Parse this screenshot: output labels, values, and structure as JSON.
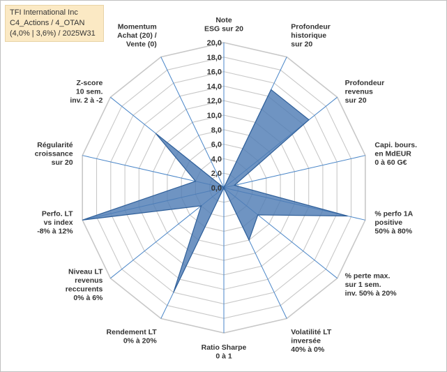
{
  "title_box": {
    "line1": "TFI International Inc",
    "line2": "C4_Actions / 4_OTAN",
    "line3": "(4,0% | 3,6%) / 2025W31"
  },
  "colors": {
    "fill": "#4f7cb5",
    "stroke": "#2f5f99",
    "grid": "#c8c8c8",
    "spoke": "#4a86c8",
    "title_bg": "#fbe9c4"
  },
  "chart_data": {
    "type": "radar",
    "rmax": 20,
    "ticks": [
      "0,0",
      "2,0",
      "4,0",
      "6,0",
      "8,0",
      "10,0",
      "12,0",
      "14,0",
      "16,0",
      "18,0",
      "20,0"
    ],
    "axes": [
      {
        "label": [
          "Note",
          "ESG sur 20"
        ],
        "value": 0
      },
      {
        "label": [
          "Profondeur",
          "historique",
          "sur 20"
        ],
        "value": 15
      },
      {
        "label": [
          "Profondeur",
          "revenus",
          "sur 20"
        ],
        "value": 15
      },
      {
        "label": [
          "Capi. bours.",
          "en MdEUR",
          "0 à 60 G€"
        ],
        "value": 1.5
      },
      {
        "label": [
          "% perfo 1A",
          "positive",
          "50% à 80%"
        ],
        "value": 17.5
      },
      {
        "label": [
          "% perte max.",
          "sur 1 sem.",
          "inv. 50% à 20%"
        ],
        "value": 6
      },
      {
        "label": [
          "Volatilité LT",
          "inversée",
          "40% à 0%"
        ],
        "value": 8
      },
      {
        "label": [
          "Ratio Sharpe",
          "0 à 1"
        ],
        "value": 0
      },
      {
        "label": [
          "Rendement LT",
          "0% à 20%"
        ],
        "value": 16
      },
      {
        "label": [
          "Niveau LT",
          "revenus",
          "reccurents",
          "0% à 6%"
        ],
        "value": 4
      },
      {
        "label": [
          "Perfo. LT",
          "vs index",
          "-8% à 12%"
        ],
        "value": 20
      },
      {
        "label": [
          "Régularité",
          "croissance",
          "sur 20"
        ],
        "value": 4
      },
      {
        "label": [
          "Z-score",
          "10 sem.",
          "inv. 2 à -2"
        ],
        "value": 12
      },
      {
        "label": [
          "Momentum",
          "Achat (20) /",
          "Vente (0)"
        ],
        "value": 0
      }
    ]
  }
}
